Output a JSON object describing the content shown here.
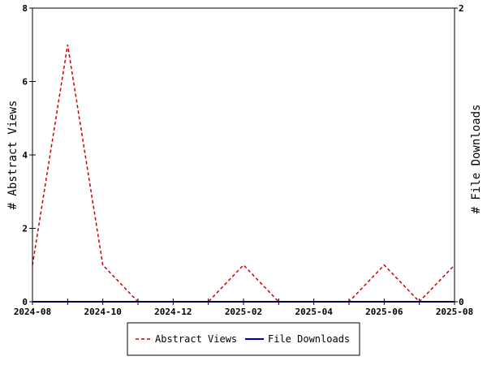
{
  "chart_data": {
    "type": "line",
    "x": [
      "2024-08",
      "2024-09",
      "2024-10",
      "2024-11",
      "2024-12",
      "2025-01",
      "2025-02",
      "2025-03",
      "2025-04",
      "2025-05",
      "2025-06",
      "2025-07",
      "2025-08"
    ],
    "x_tick_labels": [
      "2024-08",
      "2024-10",
      "2024-12",
      "2025-02",
      "2025-04",
      "2025-06",
      "2025-08"
    ],
    "series": [
      {
        "name": "Abstract Views",
        "axis": "left",
        "color": "#cc0000",
        "dash": "dashed",
        "values": [
          1,
          7,
          1,
          0,
          0,
          0,
          1,
          0,
          0,
          0,
          1,
          0,
          1
        ]
      },
      {
        "name": "File Downloads",
        "axis": "right",
        "color": "#0000aa",
        "dash": "solid",
        "values": [
          0,
          0,
          0,
          0,
          0,
          0,
          0,
          0,
          0,
          0,
          0,
          0,
          0
        ]
      }
    ],
    "ylabel": "# Abstract Views",
    "ylim": [
      0,
      8
    ],
    "yticks": [
      "0",
      "2",
      "4",
      "6",
      "8"
    ],
    "y2label": "# File Downloads",
    "y2lim": [
      0,
      2
    ],
    "y2ticks": [
      "0",
      "2"
    ],
    "legend_position": "bottom",
    "grid": false
  }
}
